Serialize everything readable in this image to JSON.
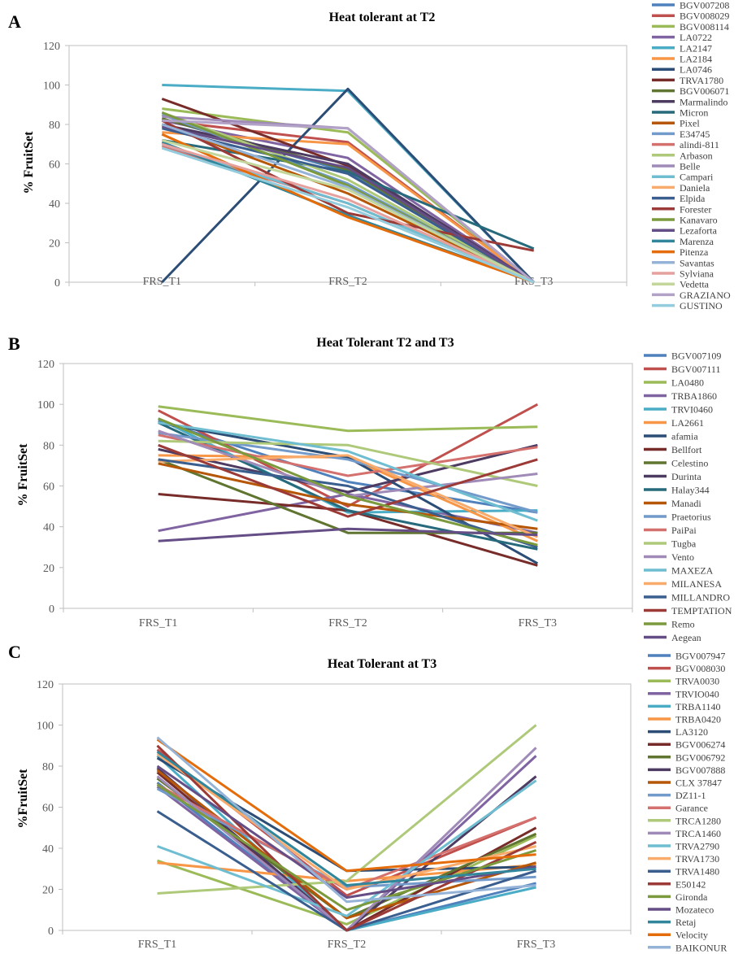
{
  "chart_data": [
    {
      "type": "line",
      "panel_label": "A",
      "title": "Heat tolerant at T2",
      "ylabel": "% FruitSet",
      "xlabel": "",
      "categories": [
        "FRS_T1",
        "FRS_T2",
        "FRS_T3"
      ],
      "ylim": [
        0,
        120
      ],
      "yticks": [
        0,
        20,
        40,
        60,
        80,
        100,
        120
      ],
      "grid": false,
      "legend_position": "right",
      "series": [
        {
          "name": "BGV007208",
          "color": "#4f81bd",
          "values": [
            83,
            56,
            0
          ]
        },
        {
          "name": "BGV008029",
          "color": "#c0504d",
          "values": [
            82,
            71,
            0
          ]
        },
        {
          "name": "BGV008114",
          "color": "#9bbb59",
          "values": [
            88,
            76,
            0
          ]
        },
        {
          "name": "LA0722",
          "color": "#8064a2",
          "values": [
            82,
            63,
            0
          ]
        },
        {
          "name": "LA2147",
          "color": "#4bacc6",
          "values": [
            100,
            97,
            0
          ]
        },
        {
          "name": "LA2184",
          "color": "#f79646",
          "values": [
            76,
            70,
            0
          ]
        },
        {
          "name": "LA0746",
          "color": "#2c4d75",
          "values": [
            0,
            98,
            0
          ]
        },
        {
          "name": "TRVA1780",
          "color": "#772c2a",
          "values": [
            93,
            59,
            0
          ]
        },
        {
          "name": "BGV006071",
          "color": "#5f7530",
          "values": [
            83,
            57,
            0
          ]
        },
        {
          "name": "Marmalindo",
          "color": "#4d3b62",
          "values": [
            80,
            60,
            0
          ]
        },
        {
          "name": "Micron",
          "color": "#276a7c",
          "values": [
            72,
            56,
            17
          ]
        },
        {
          "name": "Pixel",
          "color": "#b65708",
          "values": [
            80,
            45,
            0
          ]
        },
        {
          "name": "E34745",
          "color": "#729aca",
          "values": [
            85,
            50,
            0
          ]
        },
        {
          "name": "alindi-811",
          "color": "#d4716e",
          "values": [
            69,
            40,
            0
          ]
        },
        {
          "name": "Arbason",
          "color": "#afc97a",
          "values": [
            86,
            52,
            0
          ]
        },
        {
          "name": "Belle",
          "color": "#9f8ab8",
          "values": [
            84,
            78,
            0
          ]
        },
        {
          "name": "Campari",
          "color": "#6fbdd1",
          "values": [
            70,
            40,
            0
          ]
        },
        {
          "name": "Daniela",
          "color": "#f9ab6b",
          "values": [
            75,
            33,
            0
          ]
        },
        {
          "name": "Elpida",
          "color": "#3a5f8f",
          "values": [
            78,
            55,
            0
          ]
        },
        {
          "name": "Forester",
          "color": "#9b3a37",
          "values": [
            82,
            35,
            16
          ]
        },
        {
          "name": "Kanavaro",
          "color": "#7b9a3d",
          "values": [
            86,
            49,
            0
          ]
        },
        {
          "name": "Lezaforta",
          "color": "#654d85",
          "values": [
            79,
            58,
            0
          ]
        },
        {
          "name": "Marenza",
          "color": "#31869b",
          "values": [
            71,
            34,
            0
          ]
        },
        {
          "name": "Pitenza",
          "color": "#e46c0a",
          "values": [
            75,
            33,
            0
          ]
        },
        {
          "name": "Savantas",
          "color": "#95b3d7",
          "values": [
            80,
            48,
            0
          ]
        },
        {
          "name": "Sylviana",
          "color": "#e6a09e",
          "values": [
            70,
            42,
            0
          ]
        },
        {
          "name": "Vedetta",
          "color": "#c3d69b",
          "values": [
            72,
            47,
            0
          ]
        },
        {
          "name": "GRAZIANO",
          "color": "#b3a2c7",
          "values": [
            82,
            78,
            0
          ]
        },
        {
          "name": "GUSTINO",
          "color": "#93cddd",
          "values": [
            68,
            38,
            0
          ]
        }
      ]
    },
    {
      "type": "line",
      "panel_label": "B",
      "title": "Heat Tolerant T2 and T3",
      "ylabel": "% FruitSet",
      "xlabel": "",
      "categories": [
        "FRS_T1",
        "FRS_T2",
        "FRS_T3"
      ],
      "ylim": [
        0,
        120
      ],
      "yticks": [
        0,
        20,
        40,
        60,
        80,
        100,
        120
      ],
      "grid": false,
      "legend_position": "right",
      "series": [
        {
          "name": "BGV007109",
          "color": "#4f81bd",
          "values": [
            92,
            62,
            47
          ]
        },
        {
          "name": "BGV007111",
          "color": "#c0504d",
          "values": [
            97,
            50,
            100
          ]
        },
        {
          "name": "LA0480",
          "color": "#9bbb59",
          "values": [
            99,
            87,
            89
          ]
        },
        {
          "name": "TRBA1860",
          "color": "#8064a2",
          "values": [
            38,
            56,
            37
          ]
        },
        {
          "name": "TRVI0460",
          "color": "#4bacc6",
          "values": [
            93,
            47,
            48
          ]
        },
        {
          "name": "LA2661",
          "color": "#f79646",
          "values": [
            75,
            74,
            33
          ]
        },
        {
          "name": "afamia",
          "color": "#2c4d75",
          "values": [
            91,
            74,
            22
          ]
        },
        {
          "name": "Bellfort",
          "color": "#772c2a",
          "values": [
            56,
            48,
            21
          ]
        },
        {
          "name": "Celestino",
          "color": "#5f7530",
          "values": [
            73,
            37,
            37
          ]
        },
        {
          "name": "Durinta",
          "color": "#4d3b62",
          "values": [
            78,
            57,
            80
          ]
        },
        {
          "name": "Halay344",
          "color": "#276a7c",
          "values": [
            91,
            48,
            29
          ]
        },
        {
          "name": "Manadi",
          "color": "#b65708",
          "values": [
            71,
            51,
            39
          ]
        },
        {
          "name": "Praetorius",
          "color": "#729aca",
          "values": [
            86,
            73,
            47
          ]
        },
        {
          "name": "PaiPai",
          "color": "#d4716e",
          "values": [
            85,
            65,
            79
          ]
        },
        {
          "name": "Tugba",
          "color": "#afc97a",
          "values": [
            82,
            80,
            60
          ]
        },
        {
          "name": "Vento",
          "color": "#9f8ab8",
          "values": [
            87,
            55,
            66
          ]
        },
        {
          "name": "MAXEZA",
          "color": "#6fbdd1",
          "values": [
            91,
            77,
            43
          ]
        },
        {
          "name": "MILANESA",
          "color": "#f9ab6b",
          "values": [
            72,
            75,
            35
          ]
        },
        {
          "name": "MILLANDRO",
          "color": "#3a5f8f",
          "values": [
            73,
            60,
            30
          ]
        },
        {
          "name": "TEMPTATION",
          "color": "#9b3a37",
          "values": [
            80,
            45,
            73
          ]
        },
        {
          "name": "Remo",
          "color": "#7b9a3d",
          "values": [
            93,
            55,
            31
          ]
        },
        {
          "name": "Aegean",
          "color": "#654d85",
          "values": [
            33,
            39,
            36
          ]
        }
      ]
    },
    {
      "type": "line",
      "panel_label": "C",
      "title": "Heat Tolerant at T3",
      "ylabel": "%FruitSet",
      "xlabel": "",
      "categories": [
        "FRS_T1",
        "FRS_T2",
        "FRS_T3"
      ],
      "ylim": [
        0,
        120
      ],
      "yticks": [
        0,
        20,
        40,
        60,
        80,
        100,
        120
      ],
      "grid": false,
      "legend_position": "right",
      "series": [
        {
          "name": "BGV007947",
          "color": "#4f81bd",
          "values": [
            72,
            0,
            23
          ]
        },
        {
          "name": "BGV008030",
          "color": "#c0504d",
          "values": [
            88,
            17,
            55
          ]
        },
        {
          "name": "TRVA0030",
          "color": "#9bbb59",
          "values": [
            34,
            3,
            46
          ]
        },
        {
          "name": "TRVIO040",
          "color": "#8064a2",
          "values": [
            70,
            0,
            85
          ]
        },
        {
          "name": "TRBA1140",
          "color": "#4bacc6",
          "values": [
            85,
            0,
            21
          ]
        },
        {
          "name": "TRBA0420",
          "color": "#f79646",
          "values": [
            33,
            24,
            32
          ]
        },
        {
          "name": "LA3120",
          "color": "#2c4d75",
          "values": [
            84,
            29,
            31
          ]
        },
        {
          "name": "BGV006274",
          "color": "#772c2a",
          "values": [
            77,
            0,
            50
          ]
        },
        {
          "name": "BGV006792",
          "color": "#5f7530",
          "values": [
            74,
            6,
            47
          ]
        },
        {
          "name": "BGV007888",
          "color": "#4d3b62",
          "values": [
            79,
            0,
            75
          ]
        },
        {
          "name": "CLX 37847",
          "color": "#b65708",
          "values": [
            78,
            6,
            33
          ]
        },
        {
          "name": "DZ11-1",
          "color": "#729aca",
          "values": [
            69,
            21,
            26
          ]
        },
        {
          "name": "Garance",
          "color": "#d4716e",
          "values": [
            71,
            20,
            55
          ]
        },
        {
          "name": "TRCA1280",
          "color": "#afc97a",
          "values": [
            18,
            24,
            100
          ]
        },
        {
          "name": "TRCA1460",
          "color": "#9f8ab8",
          "values": [
            75,
            0,
            89
          ]
        },
        {
          "name": "TRVA2790",
          "color": "#6fbdd1",
          "values": [
            41,
            7,
            73
          ]
        },
        {
          "name": "TRVA1730",
          "color": "#f9ab6b",
          "values": [
            86,
            20,
            41
          ]
        },
        {
          "name": "TRVA1480",
          "color": "#3a5f8f",
          "values": [
            58,
            0,
            29
          ]
        },
        {
          "name": "E50142",
          "color": "#9b3a37",
          "values": [
            90,
            0,
            43
          ]
        },
        {
          "name": "Gironda",
          "color": "#7b9a3d",
          "values": [
            71,
            10,
            39
          ]
        },
        {
          "name": "Mozateco",
          "color": "#654d85",
          "values": [
            80,
            16,
            31
          ]
        },
        {
          "name": "Retaj",
          "color": "#31869b",
          "values": [
            87,
            22,
            30
          ]
        },
        {
          "name": "Velocity",
          "color": "#e46c0a",
          "values": [
            93,
            29,
            37
          ]
        },
        {
          "name": "BAIKONUR",
          "color": "#95b3d7",
          "values": [
            94,
            14,
            22
          ]
        }
      ]
    }
  ]
}
